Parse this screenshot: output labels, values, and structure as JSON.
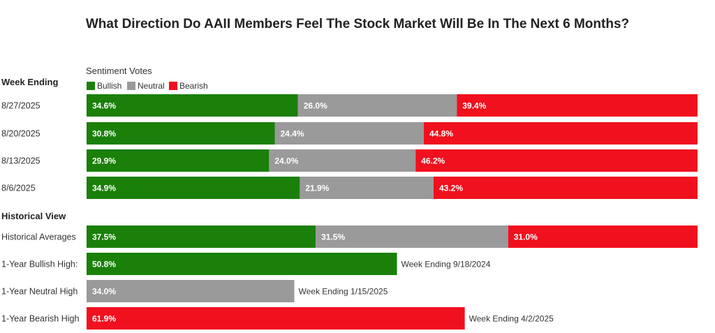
{
  "chart_data": {
    "type": "bar",
    "stacked": true,
    "orientation": "horizontal",
    "title": "What Direction Do AAII Members Feel The Stock Market Will Be In The Next 6 Months?",
    "legend_title": "Sentiment Votes",
    "legend_placement": "top-left",
    "series": [
      {
        "name": "Bullish",
        "color": "#1a8009"
      },
      {
        "name": "Neutral",
        "color": "#9a9a9a"
      },
      {
        "name": "Bearish",
        "color": "#f0101e"
      }
    ],
    "sections": [
      {
        "heading": "Week Ending",
        "rows": [
          {
            "label": "8/27/2025",
            "values": [
              34.6,
              26.0,
              39.4
            ],
            "value_labels": [
              "34.6%",
              "26.0%",
              "39.4%"
            ]
          },
          {
            "label": "8/20/2025",
            "values": [
              30.8,
              24.4,
              44.8
            ],
            "value_labels": [
              "30.8%",
              "24.4%",
              "44.8%"
            ]
          },
          {
            "label": "8/13/2025",
            "values": [
              29.9,
              24.0,
              46.2
            ],
            "value_labels": [
              "29.9%",
              "24.0%",
              "46.2%"
            ]
          },
          {
            "label": "8/6/2025",
            "values": [
              34.9,
              21.9,
              43.2
            ],
            "value_labels": [
              "34.9%",
              "21.9%",
              "43.2%"
            ]
          }
        ]
      },
      {
        "heading": "Historical View",
        "rows": [
          {
            "label": "Historical Averages",
            "values": [
              37.5,
              31.5,
              31.0
            ],
            "value_labels": [
              "37.5%",
              "31.5%",
              "31.0%"
            ]
          },
          {
            "label": "1-Year Bullish High:",
            "series_index": 0,
            "value": 50.8,
            "value_label": "50.8%",
            "note": "Week Ending 9/18/2024"
          },
          {
            "label": "1-Year Neutral High",
            "series_index": 1,
            "value": 34.0,
            "value_label": "34.0%",
            "note": "Week Ending 1/15/2025"
          },
          {
            "label": "1-Year Bearish High",
            "series_index": 2,
            "value": 61.9,
            "value_label": "61.9%",
            "note": "Week Ending 4/2/2025"
          }
        ]
      }
    ],
    "xlim": [
      0,
      100
    ],
    "grid": false
  }
}
